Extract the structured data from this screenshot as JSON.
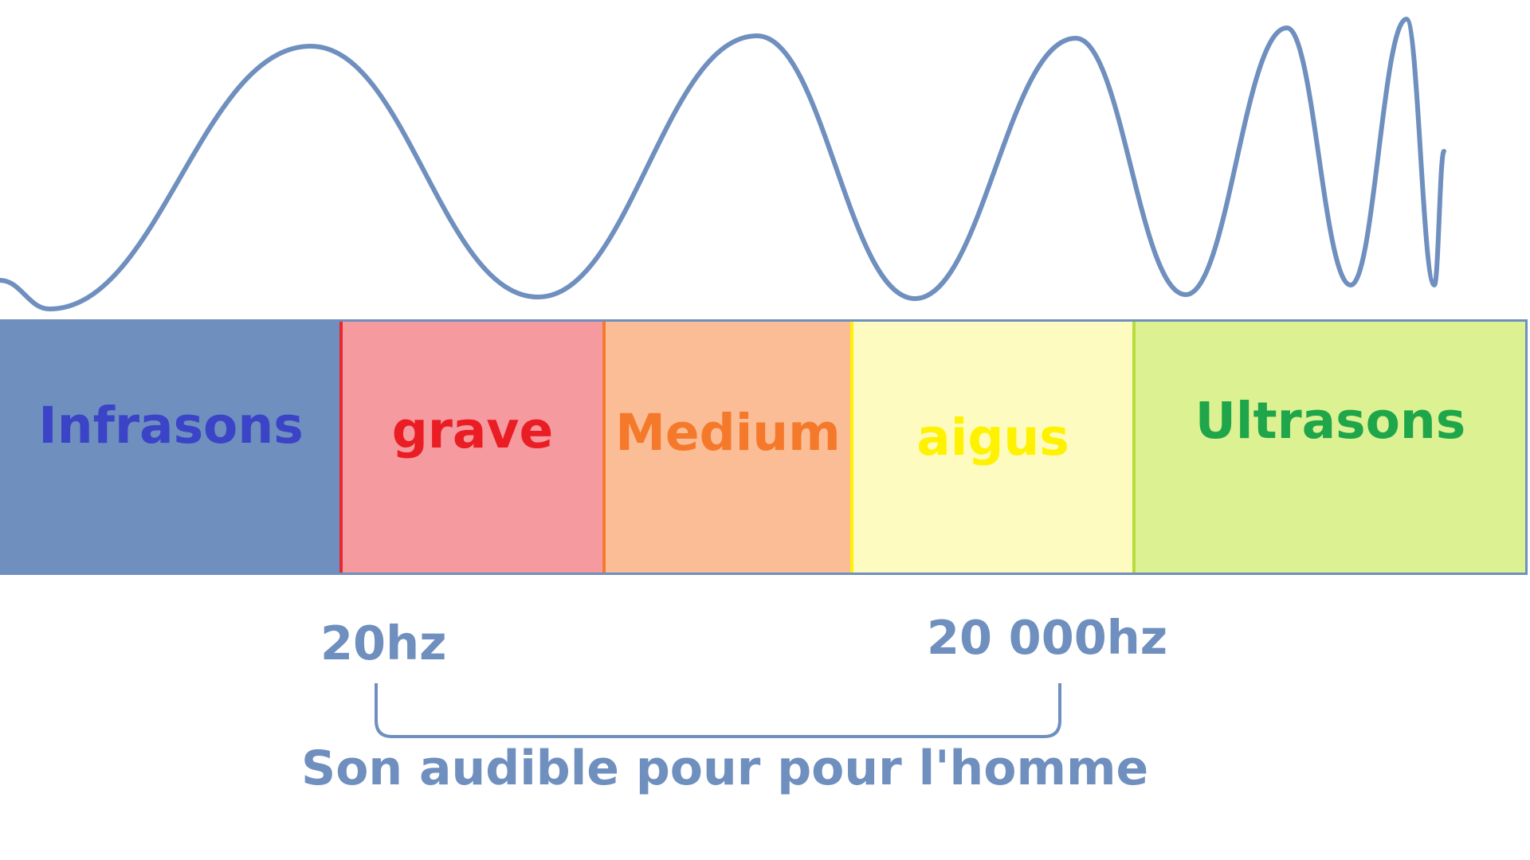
{
  "colors": {
    "wave": "#6f8fbf",
    "outline": "#6f8fbf",
    "annotation": "#6f8fbf"
  },
  "bands": [
    {
      "label": "Infrasons",
      "background": "#6f8fbf",
      "text_color": "#3b44c6",
      "divider_color": "#6f8fbf"
    },
    {
      "label": "grave",
      "background": "#f59a9e",
      "text_color": "#ea1c24",
      "divider_color": "#e8282e"
    },
    {
      "label": "Medium",
      "background": "#fbbd96",
      "text_color": "#f5792a",
      "divider_color": "#f57a2b"
    },
    {
      "label": "aigus",
      "background": "#fdfbbf",
      "text_color": "#fff200",
      "divider_color": "#fff200"
    },
    {
      "label": "Ultrasons",
      "background": "#dcf192",
      "text_color": "#1fa64a",
      "divider_color": "#b8dc3c"
    }
  ],
  "frequency_labels": {
    "low": "20hz",
    "high": "20 000hz"
  },
  "audible_range_caption": "Son audible pour pour l'homme"
}
